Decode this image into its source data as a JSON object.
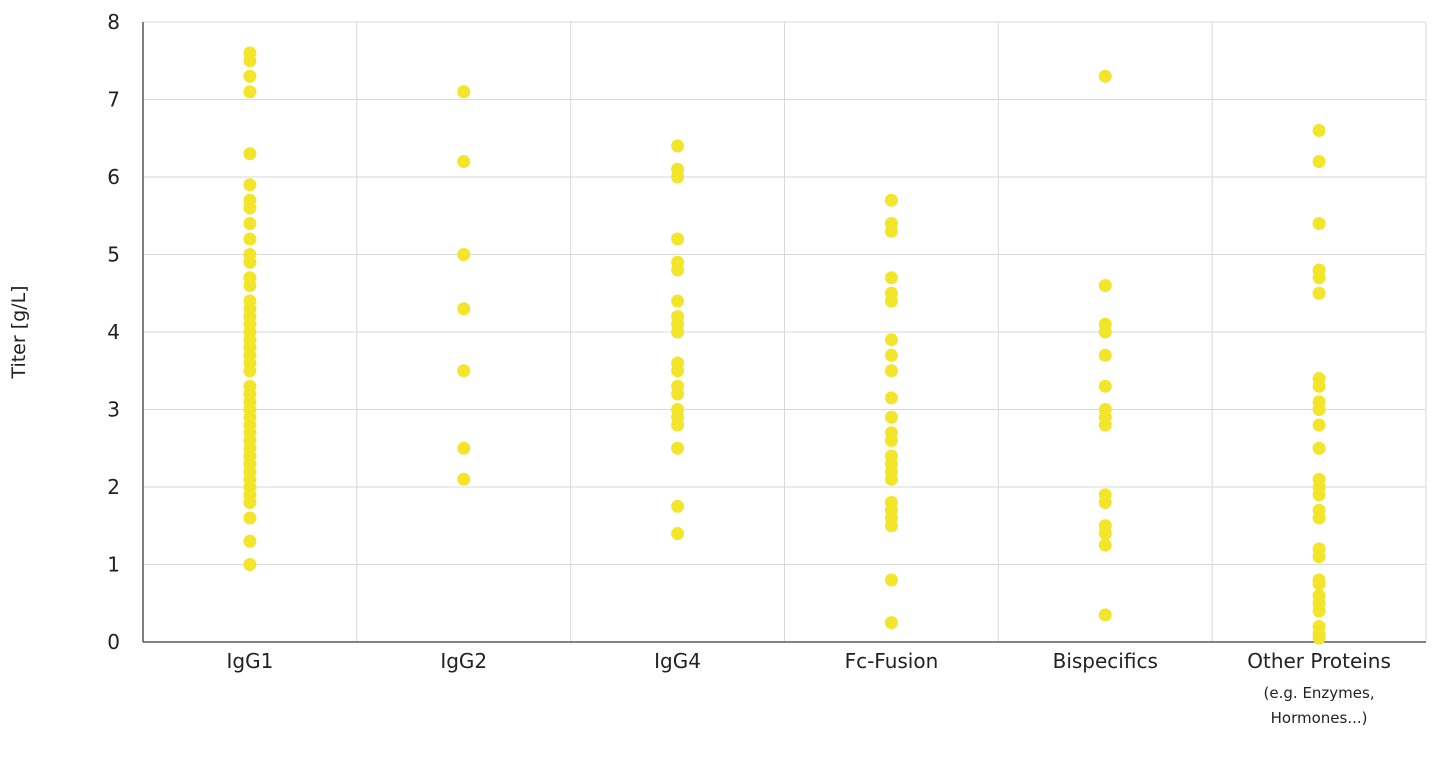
{
  "chart_data": {
    "type": "scatter",
    "title": "",
    "xlabel": "",
    "ylabel": "Titer [g/L]",
    "ylim": [
      0,
      8
    ],
    "yticks": [
      "0",
      "1",
      "2",
      "3",
      "4",
      "5",
      "6",
      "7",
      "8"
    ],
    "grid": true,
    "point_color": "#f2e52a",
    "categories": [
      {
        "label": "IgG1",
        "sublabel": []
      },
      {
        "label": "IgG2",
        "sublabel": []
      },
      {
        "label": "IgG4",
        "sublabel": []
      },
      {
        "label": "Fc-Fusion",
        "sublabel": []
      },
      {
        "label": "Bispecifics",
        "sublabel": []
      },
      {
        "label": "Other Proteins",
        "sublabel": [
          "(e.g. Enzymes,",
          "Hormones...)"
        ]
      }
    ],
    "values": [
      [
        1.0,
        1.3,
        1.6,
        1.8,
        1.9,
        2.0,
        2.1,
        2.2,
        2.3,
        2.4,
        2.5,
        2.6,
        2.7,
        2.8,
        2.9,
        3.0,
        3.1,
        3.2,
        3.3,
        3.5,
        3.6,
        3.7,
        3.8,
        3.9,
        4.0,
        4.1,
        4.2,
        4.3,
        4.4,
        4.6,
        4.7,
        4.9,
        5.0,
        5.2,
        5.4,
        5.6,
        5.7,
        5.9,
        6.3,
        7.1,
        7.3,
        7.5,
        7.6
      ],
      [
        2.1,
        2.5,
        3.5,
        4.3,
        5.0,
        6.2,
        7.1
      ],
      [
        1.4,
        1.75,
        2.5,
        2.8,
        2.9,
        3.0,
        3.2,
        3.3,
        3.5,
        3.6,
        4.0,
        4.1,
        4.2,
        4.4,
        4.8,
        4.9,
        5.2,
        6.0,
        6.1,
        6.4
      ],
      [
        0.25,
        0.8,
        1.5,
        1.6,
        1.7,
        1.8,
        2.1,
        2.2,
        2.3,
        2.4,
        2.6,
        2.7,
        2.9,
        3.15,
        3.5,
        3.7,
        3.9,
        4.4,
        4.5,
        4.7,
        5.3,
        5.4,
        5.7
      ],
      [
        0.35,
        1.25,
        1.4,
        1.5,
        1.8,
        1.9,
        2.8,
        2.9,
        3.0,
        3.3,
        3.7,
        4.0,
        4.1,
        4.6,
        7.3
      ],
      [
        0.05,
        0.1,
        0.2,
        0.4,
        0.5,
        0.6,
        0.75,
        0.8,
        1.1,
        1.2,
        1.6,
        1.7,
        1.9,
        2.0,
        2.1,
        2.5,
        2.8,
        3.0,
        3.1,
        3.3,
        3.4,
        4.5,
        4.7,
        4.8,
        5.4,
        6.2,
        6.6
      ]
    ]
  }
}
